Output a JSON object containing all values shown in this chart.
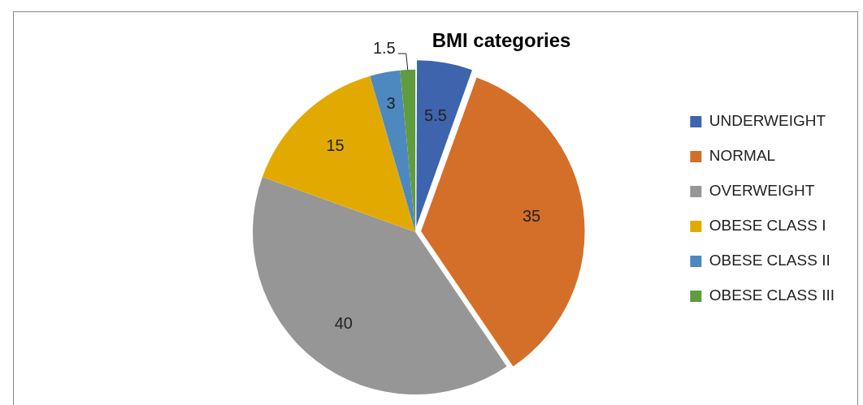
{
  "chart_data": {
    "type": "pie",
    "title": "BMI categories",
    "categories": [
      "UNDERWEIGHT",
      "NORMAL",
      "OVERWEIGHT",
      "OBESE CLASS I",
      "OBESE CLASS II",
      "OBESE CLASS III"
    ],
    "values": [
      5.5,
      35,
      40,
      15,
      3,
      1.5
    ],
    "colors": [
      "#3d64ad",
      "#d46f2a",
      "#969696",
      "#e2aa00",
      "#4d89bf",
      "#609b3e"
    ],
    "data_labels": true,
    "legend": "right"
  }
}
